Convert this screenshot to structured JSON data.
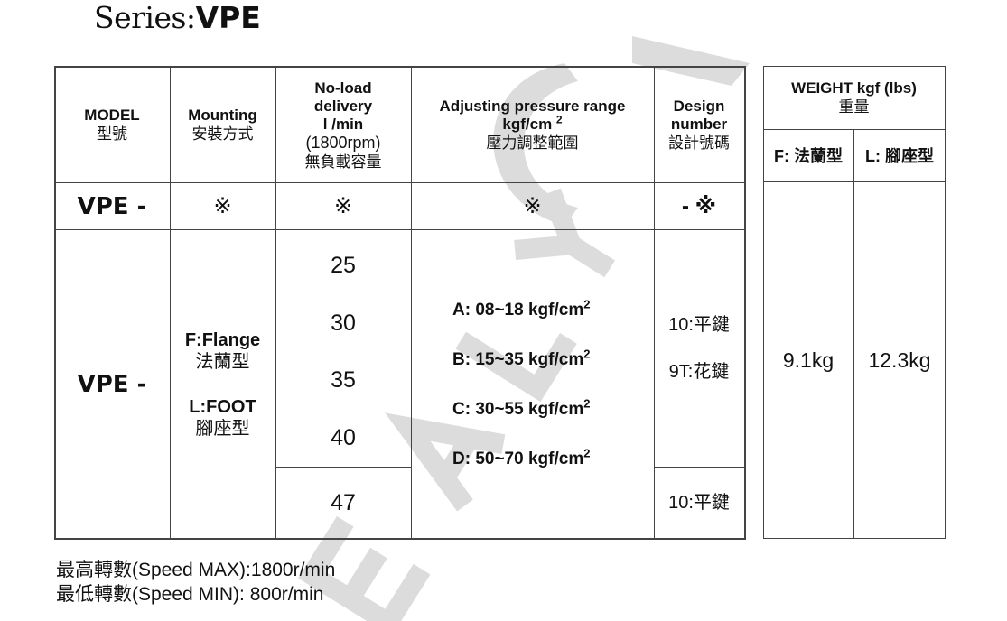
{
  "title": {
    "prefix": "Series:",
    "series": "VPE"
  },
  "table": {
    "headers": {
      "model": [
        "MODEL",
        "型號"
      ],
      "mounting": [
        "Mounting",
        "安裝方式"
      ],
      "delivery": [
        "No-load",
        "delivery",
        "l /min",
        "(1800rpm)",
        "無負載容量"
      ],
      "pressure": [
        "Adjusting pressure range",
        "kgf/cm",
        "2",
        "壓力調整範圍"
      ],
      "design": [
        "Design",
        "number",
        "設計號碼"
      ]
    },
    "code_row": {
      "model": "VPE -",
      "mounting": "※",
      "delivery": "※",
      "pressure": "※",
      "design": "- ※"
    },
    "body": {
      "model": "VPE -",
      "mounting": [
        "F:Flange",
        "法蘭型",
        "L:FOOT",
        "腳座型"
      ],
      "delivery": [
        "25",
        "30",
        "35",
        "40"
      ],
      "delivery_extra": "47",
      "pressure": [
        {
          "text": "A: 08~18 kgf/cm",
          "sup": "2"
        },
        {
          "text": "B: 15~35 kgf/cm",
          "sup": "2"
        },
        {
          "text": "C: 30~55 kgf/cm",
          "sup": "2"
        },
        {
          "text": "D: 50~70 kgf/cm",
          "sup": "2"
        }
      ],
      "design": [
        "10:平鍵",
        "9T:花鍵"
      ],
      "design_extra": "10:平鍵"
    }
  },
  "weight": {
    "header": [
      "WEIGHT kgf (lbs)",
      "重量"
    ],
    "cols": [
      "F: 法蘭型",
      "L: 腳座型"
    ],
    "values": [
      "9.1kg",
      "12.3kg"
    ]
  },
  "footer": [
    "最高轉數(Speed MAX):1800r/min",
    "最低轉數(Speed MIN): 800r/min"
  ],
  "watermark_color": "#d9d9d9"
}
